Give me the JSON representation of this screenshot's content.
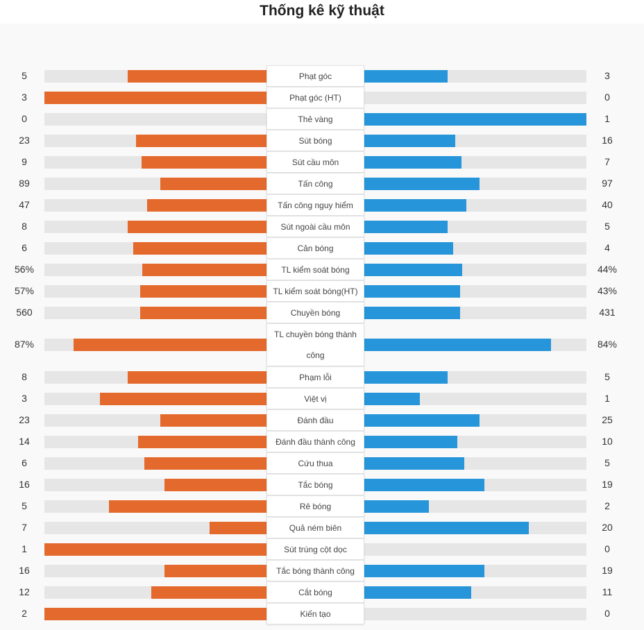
{
  "title": "Thống kê kỹ thuật",
  "colors": {
    "home": "#e4692d",
    "away": "#2695d9",
    "track": "#e6e6e6"
  },
  "stats": [
    {
      "label": "Phạt góc",
      "home": "5",
      "away": "3",
      "home_fill": 0.625,
      "away_fill": 0.375
    },
    {
      "label": "Phạt góc (HT)",
      "home": "3",
      "away": "0",
      "home_fill": 1.0,
      "away_fill": 0.0
    },
    {
      "label": "Thẻ vàng",
      "home": "0",
      "away": "1",
      "home_fill": 0.0,
      "away_fill": 1.0
    },
    {
      "label": "Sút bóng",
      "home": "23",
      "away": "16",
      "home_fill": 0.59,
      "away_fill": 0.41
    },
    {
      "label": "Sút cầu môn",
      "home": "9",
      "away": "7",
      "home_fill": 0.5625,
      "away_fill": 0.4375
    },
    {
      "label": "Tấn công",
      "home": "89",
      "away": "97",
      "home_fill": 0.48,
      "away_fill": 0.52
    },
    {
      "label": "Tấn công nguy hiểm",
      "home": "47",
      "away": "40",
      "home_fill": 0.54,
      "away_fill": 0.46
    },
    {
      "label": "Sút ngoài cầu môn",
      "home": "8",
      "away": "5",
      "home_fill": 0.625,
      "away_fill": 0.375
    },
    {
      "label": "Cản bóng",
      "home": "6",
      "away": "4",
      "home_fill": 0.6,
      "away_fill": 0.4
    },
    {
      "label": "TL kiểm soát bóng",
      "home": "56%",
      "away": "44%",
      "home_fill": 0.56,
      "away_fill": 0.44
    },
    {
      "label": "TL kiểm soát bóng(HT)",
      "home": "57%",
      "away": "43%",
      "home_fill": 0.57,
      "away_fill": 0.43
    },
    {
      "label": "Chuyền bóng",
      "home": "560",
      "away": "431",
      "home_fill": 0.57,
      "away_fill": 0.43
    },
    {
      "label": "TL chuyền bóng thành công",
      "home": "87%",
      "away": "84%",
      "home_fill": 0.87,
      "away_fill": 0.84,
      "tall": true
    },
    {
      "label": "Phạm lỗi",
      "home": "8",
      "away": "5",
      "home_fill": 0.625,
      "away_fill": 0.375
    },
    {
      "label": "Việt vị",
      "home": "3",
      "away": "1",
      "home_fill": 0.75,
      "away_fill": 0.25
    },
    {
      "label": "Đánh đầu",
      "home": "23",
      "away": "25",
      "home_fill": 0.48,
      "away_fill": 0.52
    },
    {
      "label": "Đánh đầu thành công",
      "home": "14",
      "away": "10",
      "home_fill": 0.58,
      "away_fill": 0.42
    },
    {
      "label": "Cứu thua",
      "home": "6",
      "away": "5",
      "home_fill": 0.55,
      "away_fill": 0.45
    },
    {
      "label": "Tắc bóng",
      "home": "16",
      "away": "19",
      "home_fill": 0.46,
      "away_fill": 0.54
    },
    {
      "label": "Rê bóng",
      "home": "5",
      "away": "2",
      "home_fill": 0.71,
      "away_fill": 0.29
    },
    {
      "label": "Quả ném biên",
      "home": "7",
      "away": "20",
      "home_fill": 0.26,
      "away_fill": 0.74
    },
    {
      "label": "Sút trúng cột dọc",
      "home": "1",
      "away": "0",
      "home_fill": 1.0,
      "away_fill": 0.0
    },
    {
      "label": "Tắc bóng thành công",
      "home": "16",
      "away": "19",
      "home_fill": 0.46,
      "away_fill": 0.54
    },
    {
      "label": "Cắt bóng",
      "home": "12",
      "away": "11",
      "home_fill": 0.52,
      "away_fill": 0.48
    },
    {
      "label": "Kiến tạo",
      "home": "2",
      "away": "0",
      "home_fill": 1.0,
      "away_fill": 0.0
    }
  ]
}
